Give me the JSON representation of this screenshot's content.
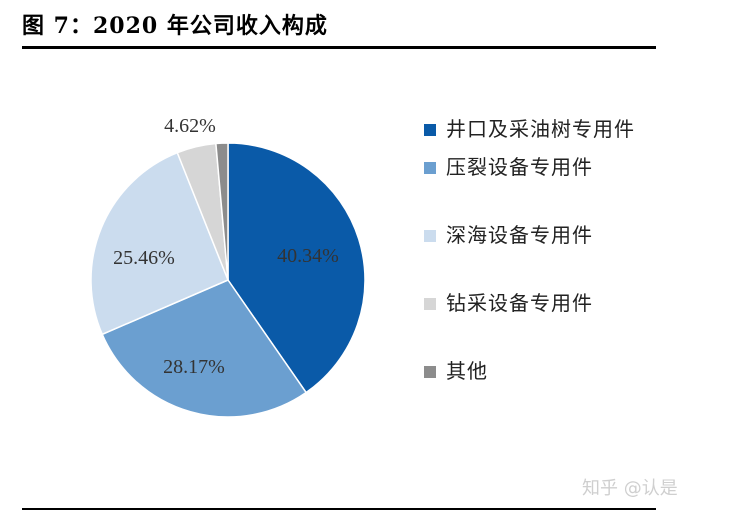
{
  "figure": {
    "title": "图 7：2020 年公司收入构成"
  },
  "chart_data": {
    "type": "pie",
    "title": "",
    "start_angle_deg": 0,
    "direction": "clockwise",
    "slices": [
      {
        "name": "井口及采油树专用件",
        "value": 40.34,
        "label": "40.34%",
        "color": "#0a5aa8"
      },
      {
        "name": "压裂设备专用件",
        "value": 28.17,
        "label": "28.17%",
        "color": "#6b9fd0"
      },
      {
        "name": "深海设备专用件",
        "value": 25.46,
        "label": "25.46%",
        "color": "#cbdcee"
      },
      {
        "name": "钻采设备专用件",
        "value": 4.62,
        "label": "4.62%",
        "color": "#d6d6d6"
      },
      {
        "name": "其他",
        "value": 1.41,
        "label": "",
        "color": "#8c8c8c"
      }
    ],
    "legend_placement": "right"
  },
  "watermark": "知乎 @认是"
}
